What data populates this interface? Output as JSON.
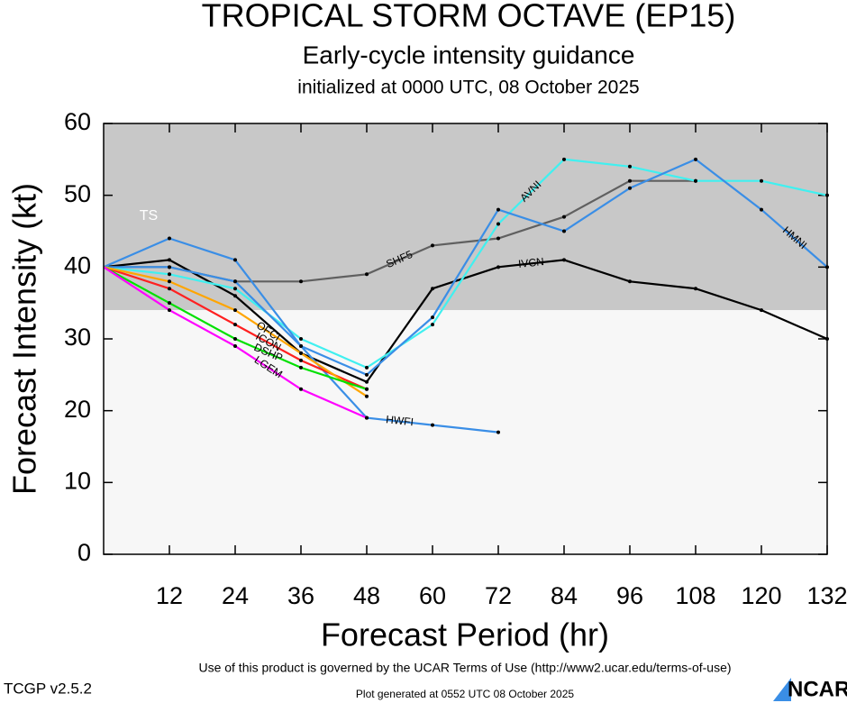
{
  "chart_data": {
    "type": "line",
    "title": "TROPICAL STORM OCTAVE (EP15)",
    "subtitle": "Early-cycle intensity guidance",
    "initialized": "initialized at 0000 UTC, 08 October 2025",
    "x_label": "Forecast Period (hr)",
    "y_label": "Forecast Intensity (kt)",
    "annotation": "TS",
    "ts_threshold": 34,
    "x": [
      0,
      12,
      24,
      36,
      48,
      60,
      72,
      84,
      96,
      108,
      120,
      132
    ],
    "xlim": [
      0,
      132
    ],
    "xticks": [
      12,
      24,
      36,
      48,
      60,
      72,
      84,
      96,
      108,
      120,
      132
    ],
    "ylim": [
      0,
      60
    ],
    "yticks": [
      0,
      10,
      20,
      30,
      40,
      50,
      60
    ],
    "series": [
      {
        "name": "SHF5",
        "color": "#606060",
        "values": [
          40,
          40,
          38,
          38,
          39,
          43,
          44,
          47,
          52,
          52,
          null,
          null
        ]
      },
      {
        "name": "IVCN",
        "color": "#000000",
        "values": [
          40,
          41,
          36,
          28,
          24,
          37,
          40,
          41,
          38,
          37,
          34,
          30
        ]
      },
      {
        "name": "AVNI",
        "color": "#40f0f0",
        "values": [
          40,
          39,
          37,
          30,
          26,
          32,
          46,
          55,
          54,
          52,
          52,
          50
        ]
      },
      {
        "name": "HMNI",
        "color": "#3a8ee6",
        "values": [
          40,
          44,
          41,
          29,
          25,
          33,
          48,
          45,
          51,
          55,
          48,
          40
        ]
      },
      {
        "name": "HWFI",
        "color": "#3a8ee6",
        "values": [
          40,
          40,
          38,
          29,
          19,
          18,
          17,
          null,
          null,
          null,
          null,
          null
        ]
      },
      {
        "name": "ICON",
        "color": "#ff2020",
        "values": [
          40,
          37,
          32,
          27,
          23,
          null,
          null,
          null,
          null,
          null,
          null,
          null
        ]
      },
      {
        "name": "OFCI",
        "color": "#ffa500",
        "values": [
          40,
          38,
          34,
          28,
          22,
          null,
          null,
          null,
          null,
          null,
          null,
          null
        ]
      },
      {
        "name": "DSHP",
        "color": "#00e000",
        "values": [
          40,
          35,
          30,
          26,
          23,
          null,
          null,
          null,
          null,
          null,
          null,
          null
        ]
      },
      {
        "name": "LGEM",
        "color": "#ff00ff",
        "values": [
          40,
          34,
          29,
          23,
          19,
          null,
          null,
          null,
          null,
          null,
          null,
          null
        ]
      }
    ]
  },
  "footer": {
    "terms": "Use of this product is governed by the UCAR Terms of Use (http://www2.ucar.edu/terms-of-use)",
    "version": "TCGP v2.5.2",
    "generated": "Plot generated at 0552 UTC   08 October 2025",
    "logo": "NCAR"
  }
}
